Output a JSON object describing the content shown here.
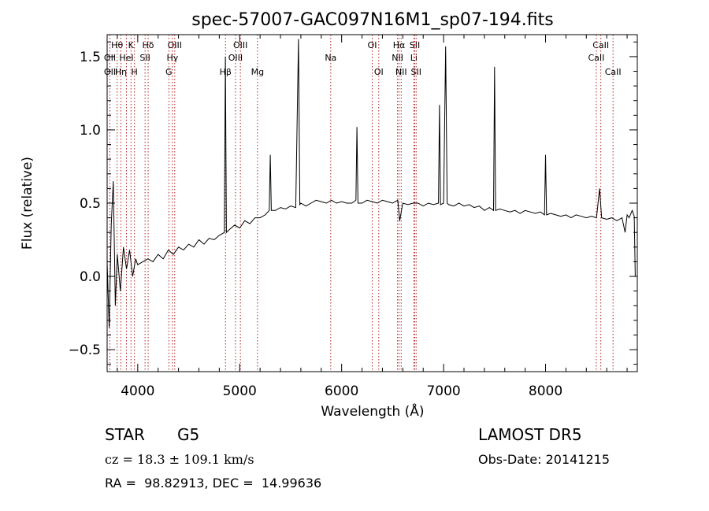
{
  "chart_data": {
    "type": "line",
    "title": "spec-57007-GAC097N16M1_sp07-194.fits",
    "xlabel": "Wavelength (Å)",
    "ylabel": "Flux (relative)",
    "xlim": [
      3700,
      8900
    ],
    "ylim": [
      -0.65,
      1.65
    ],
    "xticks": [
      4000,
      5000,
      6000,
      7000,
      8000
    ],
    "yticks": [
      -0.5,
      0.0,
      0.5,
      1.0,
      1.5
    ],
    "ytick_labels": [
      "−0.5",
      "0.0",
      "0.5",
      "1.0",
      "1.5"
    ],
    "series": [
      {
        "color": "#000000",
        "x": [
          3700,
          3720,
          3740,
          3760,
          3780,
          3800,
          3830,
          3860,
          3890,
          3920,
          3950,
          3980,
          4000,
          4050,
          4100,
          4150,
          4200,
          4250,
          4300,
          4350,
          4400,
          4450,
          4500,
          4550,
          4600,
          4650,
          4700,
          4750,
          4800,
          4850,
          4860,
          4870,
          4900,
          4950,
          5000,
          5050,
          5100,
          5150,
          5200,
          5250,
          5290,
          5300,
          5310,
          5350,
          5400,
          5450,
          5500,
          5550,
          5577,
          5590,
          5600,
          5650,
          5700,
          5750,
          5800,
          5850,
          5900,
          5950,
          6000,
          6050,
          6100,
          6140,
          6150,
          6160,
          6200,
          6250,
          6300,
          6350,
          6400,
          6450,
          6500,
          6550,
          6570,
          6600,
          6650,
          6700,
          6750,
          6800,
          6850,
          6900,
          6950,
          6960,
          6970,
          7000,
          7020,
          7035,
          7050,
          7100,
          7150,
          7200,
          7250,
          7300,
          7350,
          7400,
          7450,
          7490,
          7500,
          7510,
          7550,
          7600,
          7650,
          7700,
          7750,
          7800,
          7850,
          7900,
          7950,
          7990,
          8000,
          8010,
          8050,
          8100,
          8150,
          8200,
          8250,
          8300,
          8350,
          8400,
          8450,
          8500,
          8530,
          8550,
          8600,
          8650,
          8700,
          8750,
          8780,
          8800,
          8820,
          8850,
          8870,
          8880
        ],
        "y": [
          0.1,
          -0.35,
          0.35,
          0.65,
          -0.2,
          0.15,
          -0.1,
          0.2,
          0.05,
          0.18,
          0.0,
          0.12,
          0.08,
          0.1,
          0.12,
          0.1,
          0.15,
          0.12,
          0.18,
          0.15,
          0.2,
          0.18,
          0.22,
          0.2,
          0.25,
          0.22,
          0.26,
          0.25,
          0.28,
          0.3,
          1.5,
          0.3,
          0.32,
          0.35,
          0.33,
          0.38,
          0.36,
          0.4,
          0.4,
          0.42,
          0.45,
          0.83,
          0.45,
          0.45,
          0.47,
          0.46,
          0.48,
          0.47,
          1.62,
          0.49,
          0.5,
          0.48,
          0.5,
          0.52,
          0.51,
          0.5,
          0.52,
          0.5,
          0.51,
          0.5,
          0.5,
          0.52,
          1.02,
          0.5,
          0.5,
          0.52,
          0.51,
          0.5,
          0.52,
          0.51,
          0.5,
          0.52,
          0.38,
          0.5,
          0.49,
          0.5,
          0.5,
          0.48,
          0.5,
          0.49,
          0.5,
          1.17,
          0.49,
          0.5,
          1.57,
          0.5,
          0.49,
          0.48,
          0.5,
          0.48,
          0.49,
          0.47,
          0.48,
          0.45,
          0.47,
          0.45,
          1.43,
          0.45,
          0.46,
          0.45,
          0.44,
          0.45,
          0.43,
          0.45,
          0.44,
          0.43,
          0.44,
          0.42,
          0.83,
          0.42,
          0.43,
          0.42,
          0.41,
          0.42,
          0.4,
          0.42,
          0.41,
          0.4,
          0.41,
          0.4,
          0.6,
          0.4,
          0.39,
          0.4,
          0.38,
          0.4,
          0.3,
          0.42,
          0.4,
          0.45,
          0.41,
          0.0
        ]
      }
    ],
    "line_markers": [
      {
        "name": "Hθ",
        "x": 3798,
        "row": 1
      },
      {
        "name": "OII",
        "x": 3727,
        "row": 2
      },
      {
        "name": "OII",
        "x": 3727,
        "row": 3
      },
      {
        "name": "Hη",
        "x": 3835,
        "row": 3
      },
      {
        "name": "HeI",
        "x": 3889,
        "row": 2
      },
      {
        "name": "K",
        "x": 3934,
        "row": 1
      },
      {
        "name": "H",
        "x": 3968,
        "row": 3
      },
      {
        "name": "Hδ",
        "x": 4102,
        "row": 1
      },
      {
        "name": "SII",
        "x": 4072,
        "row": 2
      },
      {
        "name": "OIII",
        "x": 4363,
        "row": 1
      },
      {
        "name": "Hγ",
        "x": 4340,
        "row": 2
      },
      {
        "name": "G",
        "x": 4305,
        "row": 3
      },
      {
        "name": "Hβ",
        "x": 4861,
        "row": 3
      },
      {
        "name": "OIII",
        "x": 5007,
        "row": 1
      },
      {
        "name": "OIII",
        "x": 4959,
        "row": 2
      },
      {
        "name": "Mg",
        "x": 5175,
        "row": 3
      },
      {
        "name": "Na",
        "x": 5893,
        "row": 2
      },
      {
        "name": "OI",
        "x": 6300,
        "row": 1
      },
      {
        "name": "OI",
        "x": 6364,
        "row": 3
      },
      {
        "name": "Hα",
        "x": 6563,
        "row": 1
      },
      {
        "name": "NII",
        "x": 6548,
        "row": 2
      },
      {
        "name": "NII",
        "x": 6584,
        "row": 3
      },
      {
        "name": "SII",
        "x": 6717,
        "row": 1
      },
      {
        "name": "Li",
        "x": 6708,
        "row": 2
      },
      {
        "name": "SII",
        "x": 6731,
        "row": 3
      },
      {
        "name": "CaII",
        "x": 8542,
        "row": 1
      },
      {
        "name": "CaII",
        "x": 8498,
        "row": 2
      },
      {
        "name": "CaII",
        "x": 8662,
        "row": 3
      }
    ],
    "grid": false,
    "marker_line_color": "#b22222"
  },
  "info": {
    "object_class": "STAR",
    "subclass": "G5",
    "survey": "LAMOST DR5",
    "cz": "cz = 18.3 ± 109.1 km/s",
    "obs_date": "Obs-Date: 20141215",
    "coords": "RA =  98.82913, DEC =  14.99636"
  }
}
